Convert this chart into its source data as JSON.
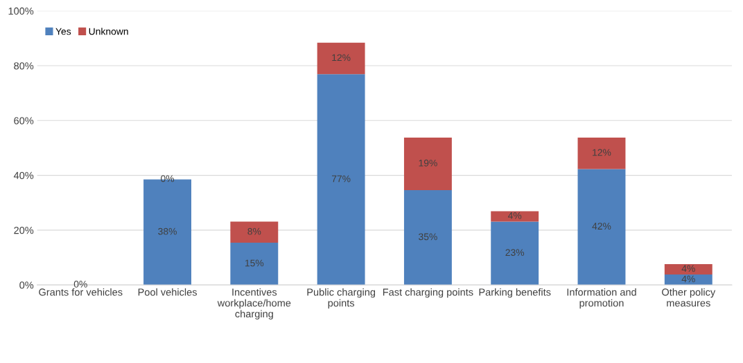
{
  "chart_data": {
    "type": "bar",
    "stacked": true,
    "categories": [
      "Grants for vehicles",
      "Pool vehicles",
      "Incentives workplace/home charging",
      "Public charging points",
      "Fast charging points",
      "Parking benefits",
      "Information and promotion",
      "Other policy measures"
    ],
    "series": [
      {
        "name": "Yes",
        "color": "#4f81bd",
        "values": [
          0,
          38.5,
          15.4,
          76.9,
          34.6,
          23.1,
          42.3,
          3.8
        ],
        "value_labels": [
          null,
          "38%",
          "15%",
          "77%",
          "35%",
          "23%",
          "42%",
          "4%"
        ]
      },
      {
        "name": "Unknown",
        "color": "#c0504d",
        "values": [
          0,
          0,
          7.7,
          11.5,
          19.2,
          3.8,
          11.5,
          3.8
        ],
        "value_labels": [
          "0%",
          "0%",
          "8%",
          "12%",
          "19%",
          "4%",
          "12%",
          "4%"
        ]
      }
    ],
    "ylim": [
      0,
      100
    ],
    "yticks": [
      {
        "value": 0,
        "label": "0%"
      },
      {
        "value": 20,
        "label": "20%"
      },
      {
        "value": 40,
        "label": "40%"
      },
      {
        "value": 60,
        "label": "60%"
      },
      {
        "value": 80,
        "label": "80%"
      },
      {
        "value": 100,
        "label": "100%"
      }
    ],
    "grid": "y",
    "legend": "top left"
  }
}
